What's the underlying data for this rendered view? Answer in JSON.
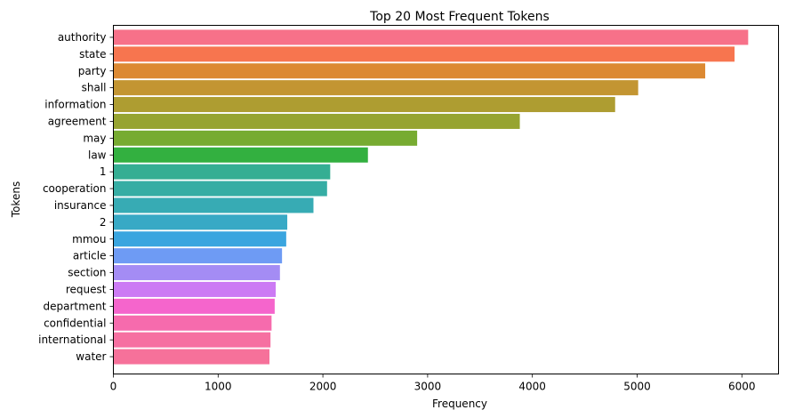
{
  "chart_data": {
    "type": "bar",
    "orientation": "horizontal",
    "title": "Top 20 Most Frequent Tokens",
    "xlabel": "Frequency",
    "ylabel": "Tokens",
    "xlim": [
      0,
      6350
    ],
    "xticks": [
      0,
      1000,
      2000,
      3000,
      4000,
      5000,
      6000
    ],
    "grid": false,
    "categories": [
      "authority",
      "state",
      "party",
      "shall",
      "information",
      "agreement",
      "may",
      "law",
      "1",
      "cooperation",
      "insurance",
      "2",
      "mmou",
      "article",
      "section",
      "request",
      "department",
      "confidential",
      "international",
      "water"
    ],
    "values": [
      6060,
      5930,
      5650,
      5010,
      4790,
      3880,
      2900,
      2430,
      2070,
      2040,
      1910,
      1660,
      1650,
      1610,
      1590,
      1550,
      1540,
      1510,
      1500,
      1490
    ],
    "colors": [
      "#f77189",
      "#f7754f",
      "#dc8932",
      "#c39532",
      "#ae9d31",
      "#97a431",
      "#77ab31",
      "#33b040",
      "#35ae93",
      "#36ada4",
      "#37abb4",
      "#38a9c5",
      "#3aa5df",
      "#6e9bf4",
      "#a48cf4",
      "#cc7af4",
      "#f565cc",
      "#f66bad",
      "#f670a1",
      "#f6719a"
    ]
  }
}
